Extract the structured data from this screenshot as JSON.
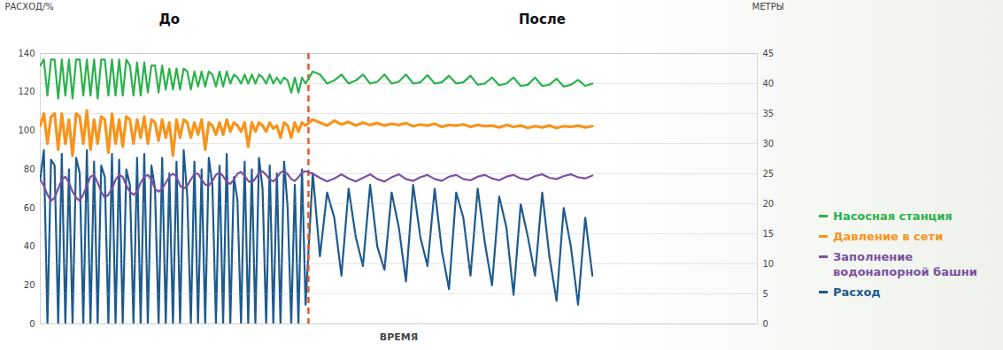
{
  "chart_data": {
    "type": "line",
    "xlabel": "ВРЕМЯ",
    "ylabel": "РАСХОД/%",
    "y2label": "МЕТРЫ",
    "x": [
      0,
      0.5,
      1,
      1.5,
      2,
      2.5,
      3,
      3.5,
      4,
      4.5,
      5,
      5.5,
      6,
      6.5,
      7,
      7.5,
      8,
      8.5,
      9,
      9.5,
      10,
      10.5,
      11,
      11.5,
      12,
      12.5,
      13,
      13.5,
      14,
      14.5,
      15,
      15.5,
      16,
      16.5,
      17,
      17.5,
      18,
      18.5,
      19,
      19.5,
      20,
      20.5,
      21,
      21.5,
      22,
      22.5,
      23,
      23.5,
      24,
      24.5,
      25,
      25.5,
      26,
      26.5,
      27,
      27.5,
      28,
      28.5,
      29,
      29.5,
      30,
      30.5,
      31,
      31.5,
      32,
      32.5,
      33,
      33.5,
      34,
      34.5,
      35,
      35.5,
      36,
      36.5,
      37,
      38,
      39,
      40,
      41,
      42,
      43,
      44,
      45,
      46,
      47,
      48,
      49,
      50,
      51,
      52,
      53,
      54,
      55,
      56,
      57,
      58,
      59,
      60,
      61,
      62,
      63,
      64,
      65,
      66,
      67,
      68,
      69,
      70,
      71,
      72,
      73,
      74,
      75,
      76,
      77
    ],
    "xlim": [
      0,
      100
    ],
    "xticks": [],
    "ylim": [
      0,
      140
    ],
    "yticks": [
      0,
      20,
      40,
      60,
      80,
      100,
      120,
      140
    ],
    "y2lim": [
      0,
      45
    ],
    "y2ticks": [
      0,
      5,
      10,
      15,
      20,
      25,
      30,
      35,
      40,
      45
    ],
    "grid": true,
    "legend": "right",
    "series": [
      {
        "name": "Насосная станция",
        "color": "#2bb24c",
        "axis": "y2",
        "values": [
          43,
          44,
          38,
          44,
          44,
          37.5,
          44,
          38,
          44,
          37.5,
          44,
          44,
          38,
          44,
          38,
          44,
          37.5,
          44,
          44,
          38,
          44,
          38,
          44,
          38,
          44,
          43,
          38,
          43.5,
          38,
          43.5,
          38.5,
          43,
          43,
          38.5,
          43,
          39,
          42.5,
          39,
          42.5,
          39,
          42.5,
          42,
          39,
          42,
          39.5,
          42,
          39.5,
          42,
          41.5,
          39.5,
          42,
          39.5,
          42,
          40,
          41.5,
          41,
          40,
          41.5,
          40,
          41.5,
          40,
          41.5,
          41,
          40,
          41.5,
          40,
          41,
          40,
          41,
          40.5,
          38.5,
          41,
          38.5,
          41,
          40,
          42,
          41.5,
          40,
          40.5,
          41.5,
          40,
          40.5,
          41.5,
          40,
          40.3,
          41.5,
          40,
          40.3,
          41.5,
          40,
          40.2,
          41.4,
          40,
          40.2,
          41.3,
          40,
          40.2,
          41.3,
          39.8,
          40,
          41,
          39.7,
          40,
          41,
          39.6,
          39.8,
          41,
          39.6,
          39.8,
          40.8,
          39.5,
          39.8,
          40.6,
          39.6,
          40
        ]
      },
      {
        "name": "Давление в сети",
        "color": "#f7941d",
        "axis": "y2",
        "values": [
          33,
          35,
          30,
          34.5,
          35,
          29,
          35,
          30,
          34,
          28,
          35,
          34.5,
          30,
          35.5,
          29,
          34,
          30,
          34.5,
          34,
          28.5,
          35,
          30,
          34,
          29.5,
          34.5,
          34,
          30,
          34,
          31,
          34.5,
          30,
          34,
          33.5,
          30.5,
          34,
          31,
          33.5,
          28,
          34,
          31,
          34,
          33.5,
          31,
          33.5,
          31.5,
          34,
          29,
          33.5,
          33,
          31.5,
          33.5,
          31.5,
          34,
          32,
          33.5,
          33,
          32,
          33.5,
          29.5,
          33.5,
          32,
          33.5,
          33,
          32,
          33.5,
          32.5,
          33,
          31,
          33.5,
          33,
          31,
          33.5,
          32,
          33.5,
          33,
          34,
          33.5,
          33,
          33.8,
          33.2,
          33.6,
          33,
          33.5,
          33.1,
          33.4,
          33,
          33.3,
          33.1,
          33.4,
          32.9,
          33.2,
          33,
          33.3,
          32.8,
          33.1,
          33,
          33.2,
          32.8,
          33.1,
          32.9,
          33,
          32.7,
          33.1,
          32.8,
          33,
          32.6,
          32.9,
          32.7,
          33,
          32.6,
          32.9,
          32.8,
          33,
          32.7,
          32.9
        ]
      },
      {
        "name": "Заполнение водонапорной башни",
        "color": "#7b4fa2",
        "axis": "y2",
        "values": [
          24,
          23,
          21.5,
          20.5,
          21,
          22.5,
          24,
          24.5,
          23.5,
          22,
          21,
          20.5,
          21.5,
          23,
          24.5,
          24.8,
          23.5,
          22,
          21,
          21.5,
          22.5,
          24,
          24.8,
          24.5,
          23,
          22,
          21.5,
          22,
          23.5,
          24.5,
          24.8,
          24,
          22.5,
          22,
          22.5,
          23.5,
          24.5,
          25,
          24.5,
          23,
          22.5,
          23,
          24,
          25,
          25,
          24,
          23.2,
          23,
          23.8,
          24.8,
          25.2,
          24.6,
          23.6,
          23.3,
          24,
          25,
          25.3,
          24.6,
          23.8,
          23.5,
          24.2,
          25.1,
          25.4,
          24.8,
          24,
          23.7,
          24.3,
          25.2,
          25.5,
          24.9,
          24.1,
          23.8,
          24.4,
          25.2,
          25.4,
          25,
          24.3,
          23.7,
          24.2,
          24.9,
          24.2,
          23.7,
          24.3,
          24.9,
          24.1,
          23.7,
          24.4,
          24.9,
          24.1,
          23.8,
          24.4,
          24.8,
          24.1,
          23.8,
          24.5,
          24.8,
          24.1,
          23.9,
          24.5,
          24.8,
          24.2,
          23.9,
          24.5,
          24.8,
          24.2,
          24,
          24.6,
          24.9,
          24.3,
          24.1,
          24.6,
          24.9,
          24.4,
          24.2,
          24.7
        ]
      },
      {
        "name": "Расход",
        "color": "#1d5a8e",
        "axis": "y",
        "values": [
          75,
          90,
          0,
          85,
          82,
          0,
          88,
          0,
          80,
          0,
          86,
          78,
          0,
          90,
          0,
          84,
          0,
          82,
          76,
          0,
          88,
          0,
          85,
          0,
          80,
          72,
          0,
          86,
          0,
          88,
          0,
          82,
          70,
          0,
          86,
          0,
          78,
          0,
          84,
          0,
          90,
          66,
          0,
          84,
          0,
          80,
          0,
          86,
          72,
          0,
          82,
          0,
          88,
          0,
          76,
          64,
          0,
          84,
          0,
          80,
          0,
          86,
          70,
          0,
          82,
          0,
          78,
          0,
          84,
          60,
          0,
          72,
          0,
          80,
          10,
          78,
          35,
          68,
          55,
          25,
          70,
          45,
          30,
          72,
          40,
          28,
          68,
          50,
          22,
          72,
          45,
          30,
          70,
          38,
          18,
          68,
          55,
          25,
          70,
          42,
          20,
          66,
          50,
          15,
          62,
          45,
          25,
          68,
          35,
          12,
          60,
          40,
          10,
          55,
          25
        ]
      }
    ],
    "annotations": [
      {
        "text": "До",
        "x": 18
      },
      {
        "text": "После",
        "x": 70
      },
      {
        "type": "vline",
        "x": 37.4,
        "color": "#e8572a",
        "line_style": "dashed"
      }
    ]
  }
}
